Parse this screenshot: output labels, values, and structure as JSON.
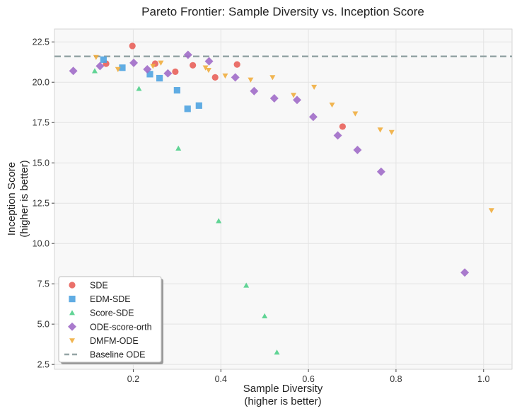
{
  "chart_data": {
    "type": "scatter",
    "title": "Pareto Frontier: Sample Diversity vs. Inception Score",
    "xlabel_lines": [
      "Sample Diversity",
      "(higher is better)"
    ],
    "ylabel_lines": [
      "Inception Score",
      "(higher is better)"
    ],
    "xlim": [
      0.02,
      1.065
    ],
    "ylim": [
      2.2,
      23.3
    ],
    "xticks": [
      0.2,
      0.4,
      0.6,
      0.8,
      1.0
    ],
    "xtick_labels": [
      "0.2",
      "0.4",
      "0.6",
      "0.8",
      "1.0"
    ],
    "yticks": [
      2.5,
      5.0,
      7.5,
      10.0,
      12.5,
      15.0,
      17.5,
      20.0,
      22.5
    ],
    "ytick_labels": [
      "2.5",
      "5.0",
      "7.5",
      "10.0",
      "12.5",
      "15.0",
      "17.5",
      "20.0",
      "22.5"
    ],
    "grid": true,
    "legend_position": "lower-left",
    "series": [
      {
        "name": "SDE",
        "marker": "circle",
        "color": "#e8615a",
        "points": [
          [
            0.138,
            21.15
          ],
          [
            0.198,
            22.25
          ],
          [
            0.25,
            21.15
          ],
          [
            0.296,
            20.65
          ],
          [
            0.336,
            21.05
          ],
          [
            0.387,
            20.3
          ],
          [
            0.437,
            21.1
          ],
          [
            0.678,
            17.25
          ]
        ]
      },
      {
        "name": "EDM-SDE",
        "marker": "square",
        "color": "#4fa3e0",
        "points": [
          [
            0.132,
            21.4
          ],
          [
            0.175,
            20.9
          ],
          [
            0.238,
            20.5
          ],
          [
            0.26,
            20.25
          ],
          [
            0.3,
            19.5
          ],
          [
            0.324,
            18.35
          ],
          [
            0.35,
            18.55
          ]
        ]
      },
      {
        "name": "Score-SDE",
        "marker": "triangle-up",
        "color": "#4fcf8a",
        "points": [
          [
            0.112,
            20.7
          ],
          [
            0.213,
            19.6
          ],
          [
            0.303,
            15.9
          ],
          [
            0.395,
            11.4
          ],
          [
            0.458,
            7.4
          ],
          [
            0.5,
            5.5
          ],
          [
            0.528,
            3.25
          ]
        ]
      },
      {
        "name": "ODE-score-orth",
        "marker": "diamond",
        "color": "#a06cc8",
        "points": [
          [
            0.063,
            20.7
          ],
          [
            0.124,
            21.0
          ],
          [
            0.201,
            21.2
          ],
          [
            0.232,
            20.8
          ],
          [
            0.279,
            20.55
          ],
          [
            0.325,
            21.7
          ],
          [
            0.373,
            21.3
          ],
          [
            0.433,
            20.3
          ],
          [
            0.476,
            19.45
          ],
          [
            0.522,
            19.0
          ],
          [
            0.574,
            18.9
          ],
          [
            0.611,
            17.85
          ],
          [
            0.667,
            16.7
          ],
          [
            0.712,
            15.8
          ],
          [
            0.766,
            14.45
          ],
          [
            0.957,
            8.2
          ]
        ]
      },
      {
        "name": "DMFM-ODE",
        "marker": "triangle-down",
        "color": "#f0ad3e",
        "points": [
          [
            0.115,
            21.55
          ],
          [
            0.165,
            20.8
          ],
          [
            0.245,
            21.0
          ],
          [
            0.263,
            21.2
          ],
          [
            0.365,
            20.9
          ],
          [
            0.372,
            20.75
          ],
          [
            0.41,
            20.4
          ],
          [
            0.468,
            20.15
          ],
          [
            0.518,
            20.3
          ],
          [
            0.566,
            19.2
          ],
          [
            0.613,
            19.7
          ],
          [
            0.654,
            18.6
          ],
          [
            0.707,
            18.05
          ],
          [
            0.764,
            17.05
          ],
          [
            0.79,
            16.9
          ],
          [
            1.018,
            12.05
          ]
        ]
      }
    ],
    "reference_lines": [
      {
        "name": "Baseline ODE",
        "y": 21.6,
        "style": "dashed",
        "color": "#95a5a6"
      }
    ]
  }
}
